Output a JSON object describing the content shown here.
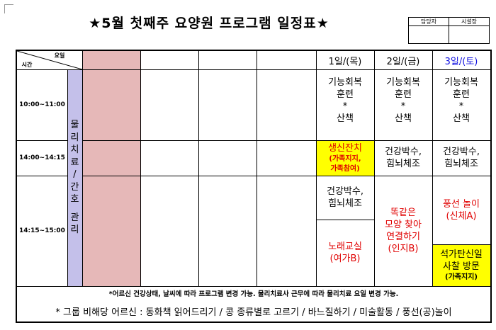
{
  "title": "★5월 첫째주 요양원 프로그램 일정표★",
  "approval": {
    "col1": "담당자",
    "col2": "시설장"
  },
  "header": {
    "corner_top": "요일",
    "corner_bottom": "시간",
    "days": [
      "1일/(목)",
      "2일/(금)",
      "3일/(토)"
    ]
  },
  "times": [
    "10:00~11:00",
    "14:00~14:15",
    "14:15~15:00"
  ],
  "side_label": [
    "물",
    "리",
    "치",
    "료",
    "/",
    "간",
    "호",
    "관",
    "리"
  ],
  "schedule": {
    "thu_morning": [
      "기능회복",
      "훈련",
      "*",
      "산책"
    ],
    "fri_morning": [
      "기능회복",
      "훈련",
      "*",
      "산책"
    ],
    "sat_morning": [
      "기능회복",
      "훈련",
      "*",
      "산책"
    ],
    "thu_1400": {
      "title": "생신잔치",
      "sub": [
        "(가족지지,",
        "가족참여)"
      ]
    },
    "fri_1400": [
      "건강박수,",
      "힘뇌체조"
    ],
    "sat_1400": [
      "건강박수,",
      "힘뇌체조"
    ],
    "thu_1415_a": [
      "건강박수,",
      "힘뇌체조"
    ],
    "thu_1415_b": [
      "노래교실",
      "(여가B)"
    ],
    "fri_1415": [
      "똑같은",
      "모양 찾아",
      "연결하기",
      "(인지B)"
    ],
    "sat_1415_a": [
      "풍선 놀이",
      "(신체A)"
    ],
    "sat_1415_b": {
      "title": [
        "석가탄신일",
        "사찰 방문"
      ],
      "sub": "(가족지지)"
    }
  },
  "notes": {
    "line1": "*어르신 건강상태, 날씨에 따라 프로그램 변경 가능. 물리치료사 근무에 따라 물리치료 요일 변경 가능.",
    "line2": "* 그룹 비해당 어르신 : 동화책 읽어드리기 / 콩 종류별로 고르기 / 바느질하기 / 미술활동 / 풍선(공)놀이"
  },
  "colors": {
    "pink": "#e6b8b8",
    "lavender": "#c4c0ea",
    "yellow": "#ffff00",
    "red": "#e00000",
    "blue": "#1010e0"
  }
}
